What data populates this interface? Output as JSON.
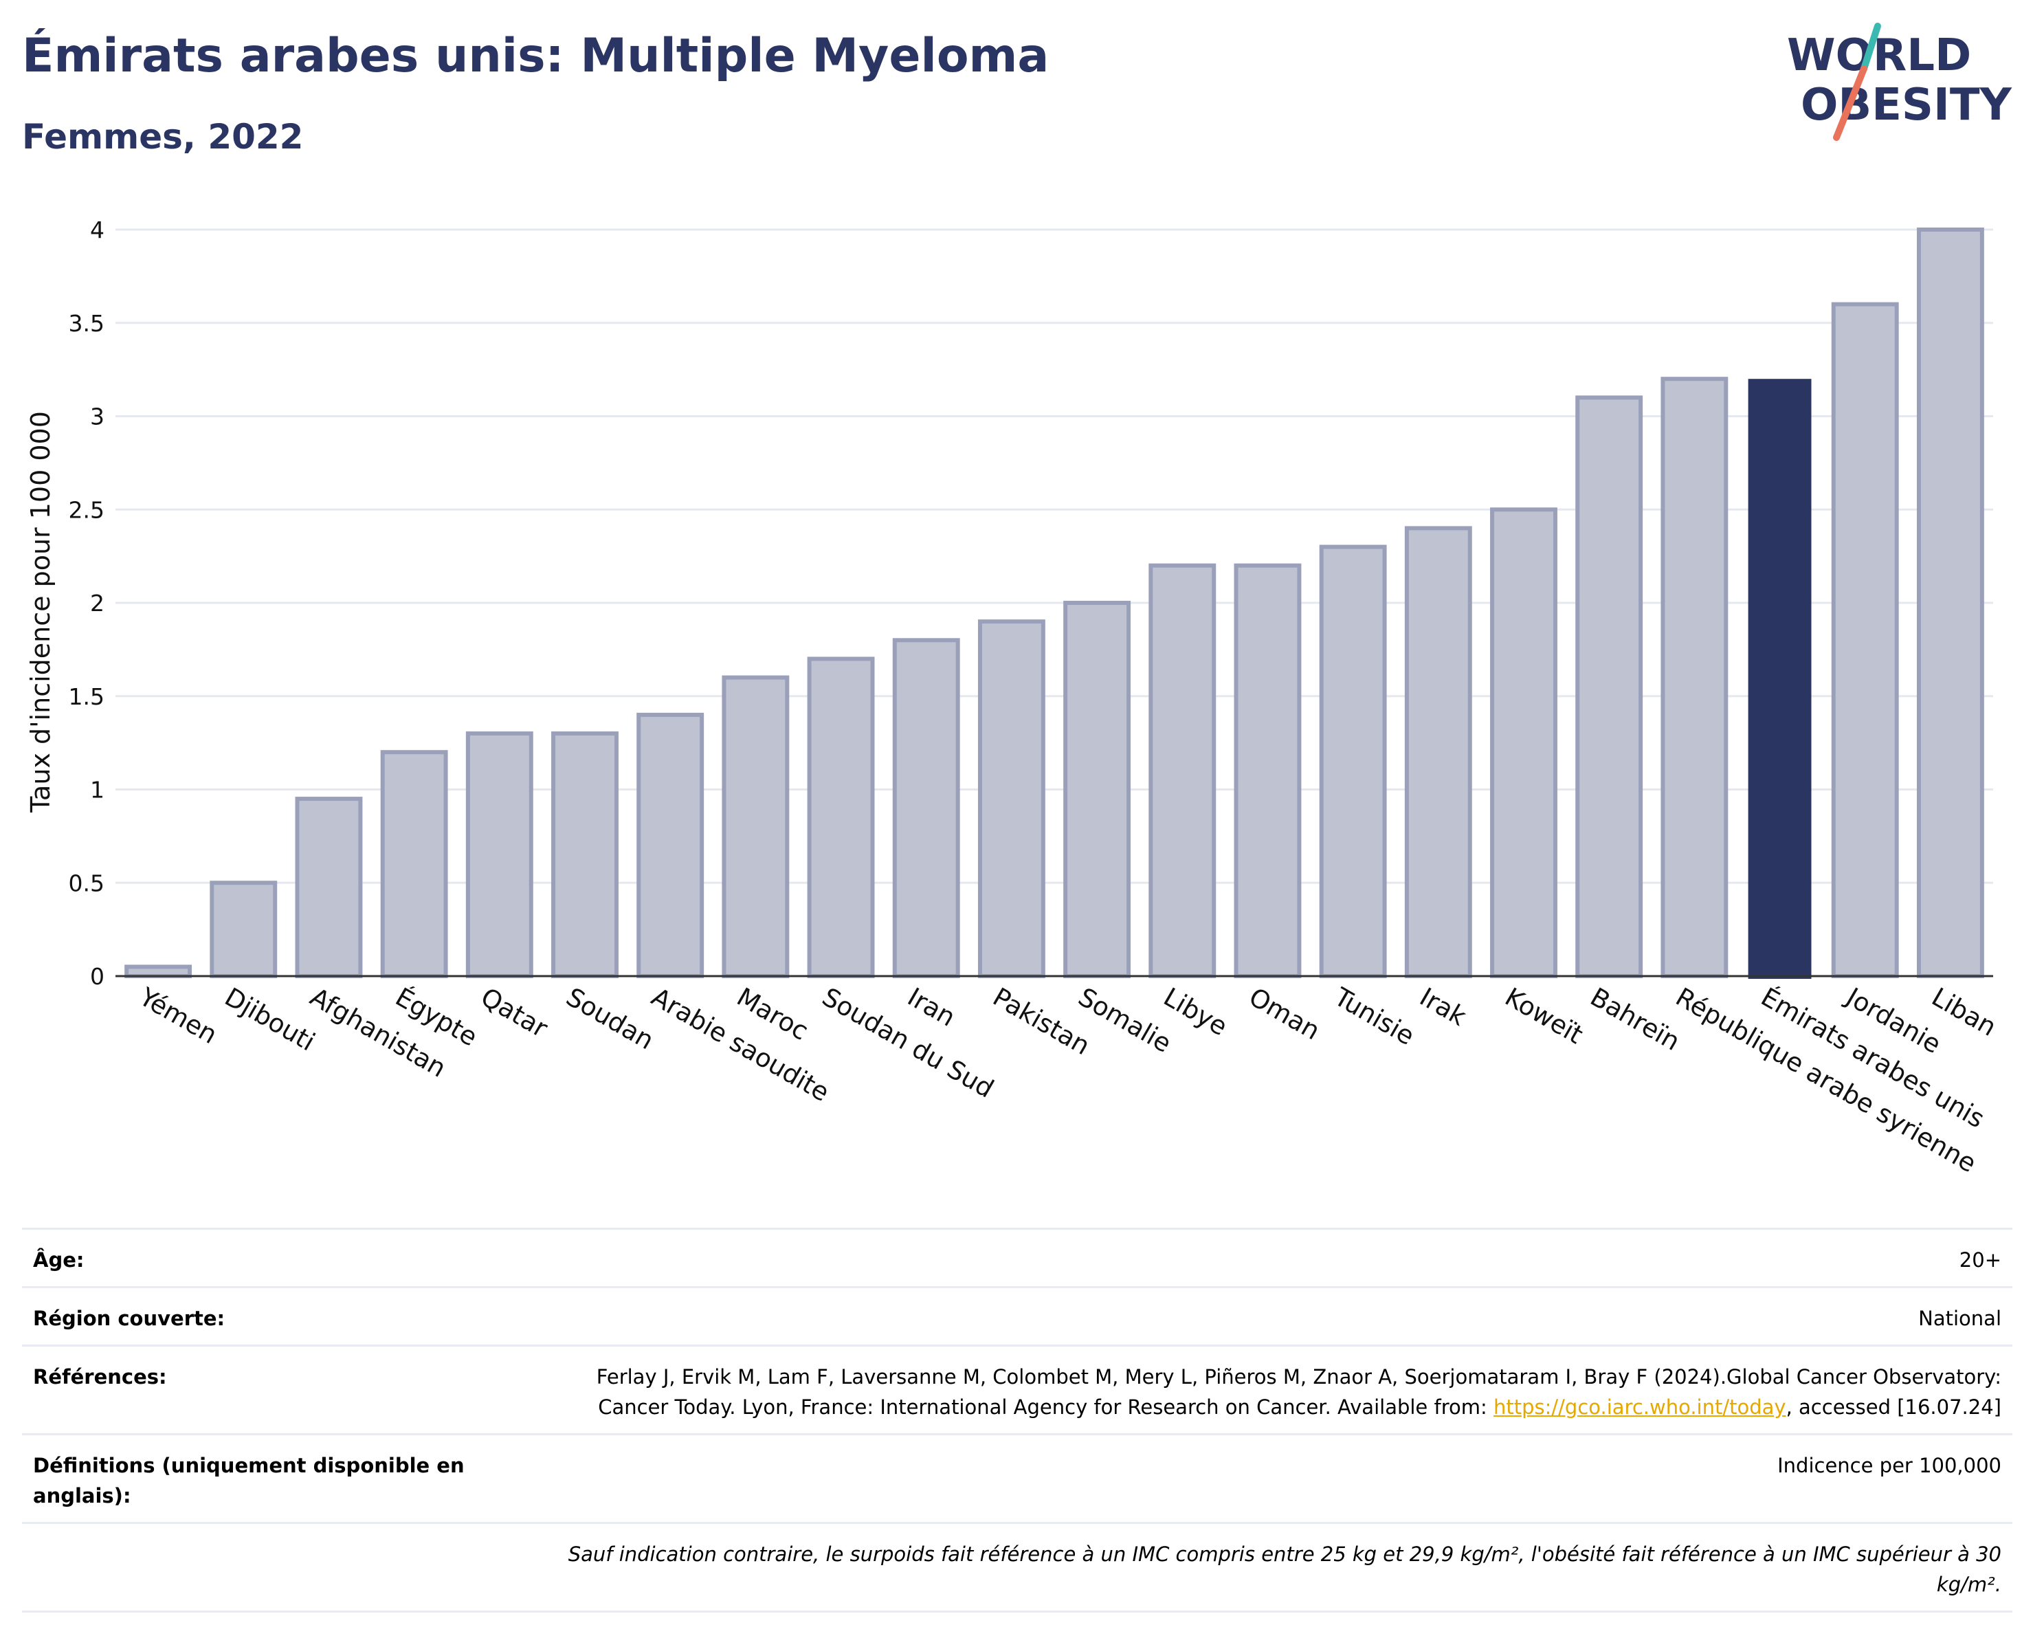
{
  "header": {
    "title": "Émirats arabes unis: Multiple Myeloma",
    "subtitle": "Femmes, 2022"
  },
  "logo": {
    "line1": "WORLD",
    "line2": "OBESITY"
  },
  "colors": {
    "highlight": "#2a3561",
    "bar_fill": "#bfc3d1",
    "bar_stroke": "#9aa0ba",
    "grid": "#e6e8ef",
    "title": "#2a3563",
    "logo_teal": "#3bb8b0",
    "logo_coral": "#e8735a"
  },
  "chart_data": {
    "type": "bar",
    "categories": [
      "Yémen",
      "Djibouti",
      "Afghanistan",
      "Égypte",
      "Qatar",
      "Soudan",
      "Arabie saoudite",
      "Maroc",
      "Soudan du Sud",
      "Iran",
      "Pakistan",
      "Somalie",
      "Libye",
      "Oman",
      "Tunisie",
      "Irak",
      "Koweït",
      "Bahreïn",
      "République arabe syrienne",
      "Émirats arabes unis",
      "Jordanie",
      "Liban"
    ],
    "values": [
      0.05,
      0.5,
      0.95,
      1.2,
      1.3,
      1.3,
      1.4,
      1.6,
      1.7,
      1.8,
      1.9,
      2.0,
      2.2,
      2.2,
      2.3,
      2.4,
      2.5,
      3.1,
      3.2,
      3.2,
      3.6,
      4.0
    ],
    "highlight": "Émirats arabes unis",
    "ylabel": "Taux d'incidence pour 100 000",
    "xlabel": "",
    "ylim": [
      0,
      4.1
    ],
    "yticks": [
      0,
      0.5,
      1,
      1.5,
      2,
      2.5,
      3,
      3.5,
      4
    ],
    "ytick_labels": [
      "0",
      "0.5",
      "1",
      "1.5",
      "2",
      "2.5",
      "3",
      "3.5",
      "4"
    ],
    "grid": true
  },
  "info": {
    "age_label": "Âge:",
    "age_value": "20+",
    "region_label": "Région couverte:",
    "region_value": "National",
    "refs_label": "Références:",
    "refs_text_1": "Ferlay J, Ervik M, Lam F, Laversanne M, Colombet M, Mery L, Piñeros M, Znaor A, Soerjomataram I, Bray F (2024).Global Cancer Observatory: Cancer Today. Lyon, France: International Agency for Research on Cancer. Available from: ",
    "refs_link": "https://gco.iarc.who.int/today",
    "refs_text_2": ", accessed [16.07.24]",
    "defs_label": "Définitions (uniquement disponible en anglais):",
    "defs_value": "Indicence per 100,000",
    "note": "Sauf indication contraire, le surpoids fait référence à un IMC compris entre 25 kg et 29,9 kg/m², l'obésité fait référence à un IMC supérieur à 30 kg/m²."
  }
}
